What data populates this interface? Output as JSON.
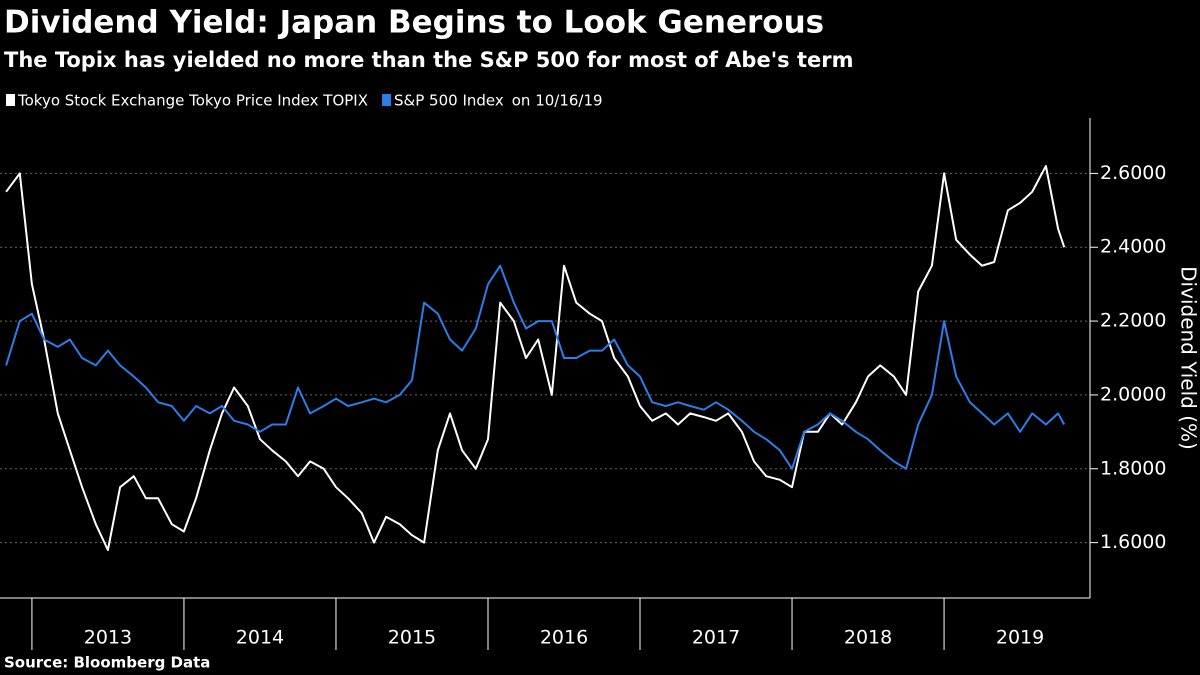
{
  "chart_data": {
    "type": "line",
    "title": "Dividend Yield: Japan Begins to Look Generous",
    "subtitle": "The Topix has yielded no more than the S&P 500 for most of Abe's term",
    "y_label": "Dividend Yield (%)",
    "legend_note": "on 10/16/19",
    "source": "Source: Bloomberg Data",
    "grid": true,
    "x": [
      2012.83,
      2012.92,
      2013.0,
      2013.08,
      2013.17,
      2013.25,
      2013.33,
      2013.42,
      2013.5,
      2013.58,
      2013.67,
      2013.75,
      2013.83,
      2013.92,
      2014.0,
      2014.08,
      2014.17,
      2014.25,
      2014.33,
      2014.42,
      2014.5,
      2014.58,
      2014.67,
      2014.75,
      2014.83,
      2014.92,
      2015.0,
      2015.08,
      2015.17,
      2015.25,
      2015.33,
      2015.42,
      2015.5,
      2015.58,
      2015.67,
      2015.75,
      2015.83,
      2015.92,
      2016.0,
      2016.08,
      2016.17,
      2016.25,
      2016.33,
      2016.42,
      2016.5,
      2016.58,
      2016.67,
      2016.75,
      2016.83,
      2016.92,
      2017.0,
      2017.08,
      2017.17,
      2017.25,
      2017.33,
      2017.42,
      2017.5,
      2017.58,
      2017.67,
      2017.75,
      2017.83,
      2017.92,
      2018.0,
      2018.08,
      2018.17,
      2018.25,
      2018.33,
      2018.42,
      2018.5,
      2018.58,
      2018.67,
      2018.75,
      2018.83,
      2018.92,
      2019.0,
      2019.08,
      2019.17,
      2019.25,
      2019.33,
      2019.42,
      2019.5,
      2019.58,
      2019.67,
      2019.75,
      2019.79
    ],
    "series": [
      {
        "name": "Tokyo Stock Exchange Tokyo Price Index TOPIX",
        "color": "#ffffff",
        "values": [
          2.55,
          2.6,
          2.3,
          2.15,
          1.95,
          1.85,
          1.75,
          1.65,
          1.58,
          1.75,
          1.78,
          1.72,
          1.72,
          1.65,
          1.63,
          1.72,
          1.85,
          1.95,
          2.02,
          1.97,
          1.88,
          1.85,
          1.82,
          1.78,
          1.82,
          1.8,
          1.75,
          1.72,
          1.68,
          1.6,
          1.67,
          1.65,
          1.62,
          1.6,
          1.85,
          1.95,
          1.85,
          1.8,
          1.88,
          2.25,
          2.2,
          2.1,
          2.15,
          2.0,
          2.35,
          2.25,
          2.22,
          2.2,
          2.1,
          2.05,
          1.97,
          1.93,
          1.95,
          1.92,
          1.95,
          1.94,
          1.93,
          1.95,
          1.9,
          1.82,
          1.78,
          1.77,
          1.75,
          1.9,
          1.9,
          1.95,
          1.92,
          1.98,
          2.05,
          2.08,
          2.05,
          2.0,
          2.28,
          2.35,
          2.6,
          2.42,
          2.38,
          2.35,
          2.36,
          2.5,
          2.52,
          2.55,
          2.62,
          2.45,
          2.4
        ]
      },
      {
        "name": "S&P 500 Index",
        "color": "#2b7de9",
        "values": [
          2.08,
          2.2,
          2.22,
          2.15,
          2.13,
          2.15,
          2.1,
          2.08,
          2.12,
          2.08,
          2.05,
          2.02,
          1.98,
          1.97,
          1.93,
          1.97,
          1.95,
          1.97,
          1.93,
          1.92,
          1.9,
          1.92,
          1.92,
          2.02,
          1.95,
          1.97,
          1.99,
          1.97,
          1.98,
          1.99,
          1.98,
          2.0,
          2.04,
          2.25,
          2.22,
          2.15,
          2.12,
          2.18,
          2.3,
          2.35,
          2.25,
          2.18,
          2.2,
          2.2,
          2.1,
          2.1,
          2.12,
          2.12,
          2.15,
          2.08,
          2.05,
          1.98,
          1.97,
          1.98,
          1.97,
          1.96,
          1.98,
          1.96,
          1.93,
          1.9,
          1.88,
          1.85,
          1.8,
          1.9,
          1.92,
          1.95,
          1.93,
          1.9,
          1.88,
          1.85,
          1.82,
          1.8,
          1.92,
          2.0,
          2.2,
          2.05,
          1.98,
          1.95,
          1.92,
          1.95,
          1.9,
          1.95,
          1.92,
          1.95,
          1.92
        ]
      }
    ],
    "xlim": [
      2012.79,
      2019.96
    ],
    "xticks": [
      2013,
      2014,
      2015,
      2016,
      2017,
      2018,
      2019
    ],
    "ylim": [
      1.45,
      2.75
    ],
    "yticks": [
      {
        "value": 1.6,
        "label": "1.6000"
      },
      {
        "value": 1.8,
        "label": "1.8000"
      },
      {
        "value": 2.0,
        "label": "2.0000"
      },
      {
        "value": 2.2,
        "label": "2.2000"
      },
      {
        "value": 2.4,
        "label": "2.4000"
      },
      {
        "value": 2.6,
        "label": "2.6000"
      }
    ]
  }
}
